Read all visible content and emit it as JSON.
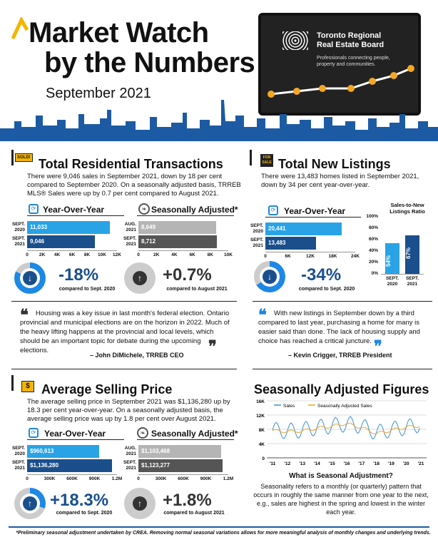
{
  "header": {
    "title_line1": "Market Watch",
    "title_line2": "by the Numbers",
    "date": "September 2021",
    "trreb_name1": "Toronto Regional",
    "trreb_name2": "Real Estate Board",
    "trreb_tag1": "Professionals connecting people,",
    "trreb_tag2": "property and communities."
  },
  "trans": {
    "title": "Total Residential Transactions",
    "badge": "SOLD!",
    "text": "There were 9,046 sales in September 2021, down by 18 per cent compared to September 2020. On a seasonally adjusted basis, TRREB MLS® Sales were up by 0.7 per cent compared to August 2021.",
    "yoy_title": "Year-Over-Year",
    "sa_title": "Seasonally Adjusted*",
    "yoy_bars": [
      {
        "label1": "SEPT.",
        "label2": "2020",
        "value": 11033,
        "text": "11,033"
      },
      {
        "label1": "SEPT.",
        "label2": "2021",
        "value": 9046,
        "text": "9,046"
      }
    ],
    "sa_bars": [
      {
        "label1": "AUG.",
        "label2": "2021",
        "value": 8649,
        "text": "8,649"
      },
      {
        "label1": "SEPT.",
        "label2": "2021",
        "value": 8712,
        "text": "8,712"
      }
    ],
    "ticks": [
      "0",
      "2K",
      "4K",
      "6K",
      "8K",
      "10K",
      "12K"
    ],
    "sa_ticks": [
      "0",
      "2K",
      "4K",
      "6K",
      "8K",
      "10K"
    ],
    "yoy_pct": "-18%",
    "yoy_cmp": "compared to Sept. 2020",
    "sa_pct": "+0.7%",
    "sa_cmp": "compared to August 2021"
  },
  "listings": {
    "title": "Total New Listings",
    "badge1": "FOR",
    "badge2": "SALE",
    "text": "There were 13,483 homes listed in September 2021, down by 34 per cent year-over-year.",
    "yoy_title": "Year-Over-Year",
    "bars": [
      {
        "label1": "SEPT.",
        "label2": "2020",
        "value": 20441,
        "text": "20,441"
      },
      {
        "label1": "SEPT.",
        "label2": "2021",
        "value": 13483,
        "text": "13,483"
      }
    ],
    "ticks": [
      "0",
      "6K",
      "12K",
      "18K",
      "24K"
    ],
    "pct": "-34%",
    "cmp": "compared to Sept. 2020",
    "ratio_title1": "Sales-to-New",
    "ratio_title2": "Listings Ratio",
    "ratio_ticks": [
      "100%",
      "80%",
      "60%",
      "40%",
      "20%",
      "0%"
    ],
    "ratio": [
      {
        "label1": "SEPT.",
        "label2": "2020",
        "value": 54,
        "text": "54%"
      },
      {
        "label1": "SEPT.",
        "label2": "2021",
        "value": 67,
        "text": "67%"
      }
    ]
  },
  "quote1": {
    "text": "Housing was a key issue in last month's federal election. Ontario provincial and municipal elections are on the horizon in 2022. Much of the heavy lifting happens at the provincial and local levels, which should be an important topic for debate during the upcoming elections.",
    "author": "– John DiMichele, TRREB CEO"
  },
  "quote2": {
    "text": "With new listings in September down by a third compared to last year, purchasing a home for many is easier said than done. The lack of housing supply and choice has reached a critical juncture.",
    "author": "– Kevin Crigger, TRREB President"
  },
  "price": {
    "title": "Average Selling Price",
    "badge": "$",
    "text": "The average selling price in September 2021 was $1,136,280 up by 18.3 per cent year-over-year. On a seasonally adjusted basis, the average selling price was up by 1.8 per cent over August 2021.",
    "yoy_title": "Year-Over-Year",
    "sa_title": "Seasonally Adjusted*",
    "yoy_bars": [
      {
        "label1": "SEPT.",
        "label2": "2020",
        "value": 960613,
        "text": "$960,613"
      },
      {
        "label1": "SEPT.",
        "label2": "2021",
        "value": 1136280,
        "text": "$1,136,280"
      }
    ],
    "sa_bars": [
      {
        "label1": "AUG.",
        "label2": "2021",
        "value": 1103468,
        "text": "$1,103,468"
      },
      {
        "label1": "SEPT.",
        "label2": "2021",
        "value": 1123277,
        "text": "$1,123,277"
      }
    ],
    "ticks": [
      "0",
      "300K",
      "600K",
      "900K",
      "1.2M"
    ],
    "yoy_pct": "+18.3%",
    "yoy_cmp": "compared to Sept. 2020",
    "sa_pct": "+1.8%",
    "sa_cmp": "compared to August 2021"
  },
  "sa_fig": {
    "title": "Seasonally Adjusted Figures",
    "legend_sales": "Sales",
    "legend_sa": "Seasonally Adjusted Sales",
    "yticks": [
      "16K",
      "12K",
      "8K",
      "4K",
      "0"
    ],
    "xticks": [
      "'11",
      "'12",
      "'13",
      "'14",
      "'15",
      "'16",
      "'17",
      "'18",
      "'19",
      "'20",
      "'21"
    ],
    "q_title": "What is Seasonal Adjustment?",
    "q_text": "Seasonality refers to a monthly (or quarterly) pattern that occurs in roughly the same manner from one year to the next, e.g., sales are highest in the spring and lowest in the winter each year."
  },
  "footer": "*Preliminary seasonal adjustment undertaken by CREA. Removing normal seasonal variations allows for more meaningful analysis of monthly changes and underlying trends.",
  "chart_data": [
    {
      "type": "bar",
      "title": "Total Residential Transactions Year-Over-Year",
      "categories": [
        "SEPT. 2020",
        "SEPT. 2021"
      ],
      "values": [
        11033,
        9046
      ],
      "xlim": [
        0,
        12000
      ]
    },
    {
      "type": "bar",
      "title": "Total Residential Transactions Seasonally Adjusted",
      "categories": [
        "AUG. 2021",
        "SEPT. 2021"
      ],
      "values": [
        8649,
        8712
      ],
      "xlim": [
        0,
        10000
      ]
    },
    {
      "type": "bar",
      "title": "Total New Listings Year-Over-Year",
      "categories": [
        "SEPT. 2020",
        "SEPT. 2021"
      ],
      "values": [
        20441,
        13483
      ],
      "xlim": [
        0,
        24000
      ]
    },
    {
      "type": "bar",
      "title": "Sales-to-New Listings Ratio",
      "categories": [
        "SEPT. 2020",
        "SEPT. 2021"
      ],
      "values": [
        54,
        67
      ],
      "ylim": [
        0,
        100
      ]
    },
    {
      "type": "bar",
      "title": "Average Selling Price Year-Over-Year",
      "categories": [
        "SEPT. 2020",
        "SEPT. 2021"
      ],
      "values": [
        960613,
        1136280
      ],
      "xlim": [
        0,
        1200000
      ]
    },
    {
      "type": "bar",
      "title": "Average Selling Price Seasonally Adjusted",
      "categories": [
        "AUG. 2021",
        "SEPT. 2021"
      ],
      "values": [
        1103468,
        1123277
      ],
      "xlim": [
        0,
        1200000
      ]
    },
    {
      "type": "line",
      "title": "Seasonally Adjusted Figures",
      "ylim": [
        0,
        16000
      ],
      "x": [
        "'11",
        "'12",
        "'13",
        "'14",
        "'15",
        "'16",
        "'17",
        "'18",
        "'19",
        "'20",
        "'21"
      ],
      "series": [
        {
          "name": "Sales",
          "values": [
            7800,
            7500,
            7800,
            8500,
            9000,
            9500,
            9000,
            7000,
            8000,
            8500,
            9500
          ]
        },
        {
          "name": "Seasonally Adjusted Sales",
          "values": [
            7600,
            7400,
            7500,
            8300,
            8900,
            9600,
            8500,
            6800,
            7700,
            8600,
            9000
          ]
        }
      ]
    }
  ]
}
